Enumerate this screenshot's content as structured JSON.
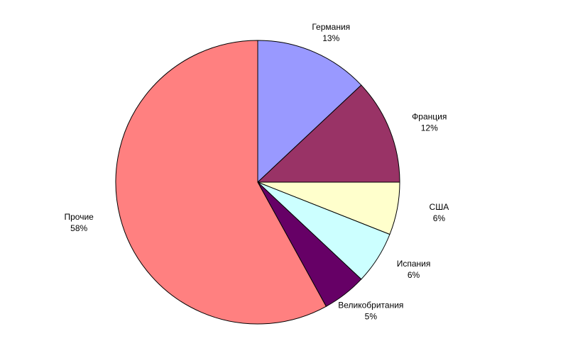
{
  "chart_data": {
    "type": "pie",
    "categories": [
      "Германия",
      "Франция",
      "США",
      "Испания",
      "Великобритания",
      "Прочие"
    ],
    "values": [
      13,
      12,
      6,
      6,
      5,
      58
    ],
    "value_labels": [
      "13%",
      "12%",
      "6%",
      "6%",
      "5%",
      "58%"
    ],
    "colors": [
      "#9999ff",
      "#993366",
      "#ffffcc",
      "#ccffff",
      "#660066",
      "#ff8080"
    ]
  }
}
